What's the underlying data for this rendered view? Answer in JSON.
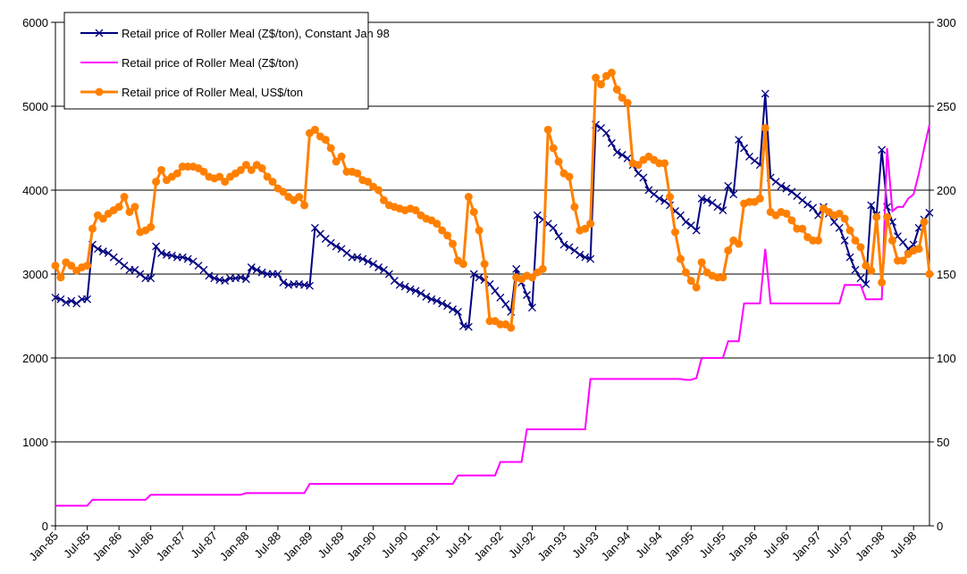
{
  "chart_data": {
    "type": "line",
    "categories": [
      "Jan-85",
      null,
      null,
      null,
      null,
      null,
      "Jul-85",
      null,
      null,
      null,
      null,
      null,
      "Jan-86",
      null,
      null,
      null,
      null,
      null,
      "Jul-86",
      null,
      null,
      null,
      null,
      null,
      "Jan-87",
      null,
      null,
      null,
      null,
      null,
      "Jul-87",
      null,
      null,
      null,
      null,
      null,
      "Jan-88",
      null,
      null,
      null,
      null,
      null,
      "Jul-88",
      null,
      null,
      null,
      null,
      null,
      "Jan-89",
      null,
      null,
      null,
      null,
      null,
      "Jul-89",
      null,
      null,
      null,
      null,
      null,
      "Jan-90",
      null,
      null,
      null,
      null,
      null,
      "Jul-90",
      null,
      null,
      null,
      null,
      null,
      "Jan-91",
      null,
      null,
      null,
      null,
      null,
      "Jul-91",
      null,
      null,
      null,
      null,
      null,
      "Jan-92",
      null,
      null,
      null,
      null,
      null,
      "Jul-92",
      null,
      null,
      null,
      null,
      null,
      "Jan-93",
      null,
      null,
      null,
      null,
      null,
      "Jul-93",
      null,
      null,
      null,
      null,
      null,
      "Jan-94",
      null,
      null,
      null,
      null,
      null,
      "Jul-94",
      null,
      null,
      null,
      null,
      null,
      "Jan-95",
      null,
      null,
      null,
      null,
      null,
      "Jul-95",
      null,
      null,
      null,
      null,
      null,
      "Jan-96",
      null,
      null,
      null,
      null,
      null,
      "Jul-96",
      null,
      null,
      null,
      null,
      null,
      "Jan-97",
      null,
      null,
      null,
      null,
      null,
      "Jul-97",
      null,
      null,
      null,
      null,
      null,
      "Jan-98",
      null,
      null,
      null,
      null,
      null,
      "Jul-98",
      null,
      null,
      null
    ],
    "series": [
      {
        "name": "Retail price of Roller Meal (Z$/ton), Constant Jan 98",
        "color": "#000080",
        "marker": "x",
        "axis": "y",
        "values": [
          2720,
          2700,
          2660,
          2680,
          2650,
          2700,
          2700,
          3350,
          3300,
          3270,
          3250,
          3200,
          3150,
          3100,
          3050,
          3050,
          3000,
          2950,
          2950,
          3330,
          3250,
          3230,
          3220,
          3200,
          3200,
          3180,
          3150,
          3100,
          3050,
          2980,
          2950,
          2930,
          2920,
          2950,
          2950,
          2960,
          2940,
          3080,
          3050,
          3020,
          3000,
          3000,
          3000,
          2900,
          2870,
          2880,
          2880,
          2870,
          2860,
          3550,
          3480,
          3420,
          3370,
          3330,
          3300,
          3250,
          3200,
          3200,
          3180,
          3150,
          3120,
          3080,
          3050,
          3000,
          2920,
          2870,
          2850,
          2820,
          2800,
          2770,
          2730,
          2700,
          2680,
          2650,
          2620,
          2580,
          2550,
          2380,
          2370,
          3000,
          2960,
          2930,
          2880,
          2800,
          2720,
          2640,
          2550,
          3060,
          2900,
          2750,
          2600,
          3700,
          3650,
          3600,
          3550,
          3450,
          3350,
          3320,
          3280,
          3230,
          3200,
          3180,
          4780,
          4740,
          4680,
          4560,
          4450,
          4420,
          4380,
          4300,
          4200,
          4150,
          4000,
          3950,
          3900,
          3870,
          3820,
          3750,
          3700,
          3620,
          3580,
          3520,
          3900,
          3880,
          3850,
          3800,
          3760,
          4050,
          3950,
          4600,
          4500,
          4400,
          4350,
          4300,
          5150,
          4150,
          4100,
          4050,
          4020,
          3980,
          3930,
          3880,
          3830,
          3790,
          3700,
          3800,
          3720,
          3620,
          3550,
          3400,
          3200,
          3050,
          2950,
          2880,
          3820,
          3700,
          4480,
          3800,
          3620,
          3450,
          3380,
          3300,
          3350,
          3550,
          3650,
          3730
        ]
      },
      {
        "name": "Retail price of Roller Meal (Z$/ton)",
        "color": "#ff00ff",
        "marker": "none",
        "axis": "y",
        "values": [
          240,
          240,
          240,
          240,
          240,
          240,
          240,
          310,
          310,
          310,
          310,
          310,
          310,
          310,
          310,
          310,
          310,
          310,
          370,
          370,
          370,
          370,
          370,
          370,
          370,
          370,
          370,
          370,
          370,
          370,
          370,
          370,
          370,
          370,
          370,
          370,
          390,
          390,
          390,
          390,
          390,
          390,
          390,
          390,
          390,
          390,
          390,
          390,
          500,
          500,
          500,
          500,
          500,
          500,
          500,
          500,
          500,
          500,
          500,
          500,
          500,
          500,
          500,
          500,
          500,
          500,
          500,
          500,
          500,
          500,
          500,
          500,
          500,
          500,
          500,
          500,
          600,
          600,
          600,
          600,
          600,
          600,
          600,
          600,
          760,
          760,
          760,
          760,
          760,
          1150,
          1150,
          1150,
          1150,
          1150,
          1150,
          1150,
          1150,
          1150,
          1150,
          1150,
          1150,
          1750,
          1750,
          1750,
          1750,
          1750,
          1750,
          1750,
          1750,
          1750,
          1750,
          1750,
          1750,
          1750,
          1750,
          1750,
          1750,
          1750,
          1750,
          1740,
          1740,
          1760,
          2000,
          2000,
          2000,
          2000,
          2000,
          2200,
          2200,
          2200,
          2650,
          2650,
          2650,
          2650,
          3300,
          2650,
          2650,
          2650,
          2650,
          2650,
          2650,
          2650,
          2650,
          2650,
          2650,
          2650,
          2650,
          2650,
          2650,
          2870,
          2870,
          2870,
          2870,
          2700,
          2700,
          2700,
          2700,
          4500,
          3750,
          3800,
          3800,
          3900,
          3950,
          4200,
          4500,
          4780
        ]
      },
      {
        "name": "Retail price of Roller Meal, US$/ton",
        "color": "#ff8000",
        "marker": "circle",
        "axis": "y2",
        "values": [
          155,
          148,
          157,
          155,
          152,
          154,
          155,
          177,
          185,
          183,
          186,
          188,
          190,
          196,
          187,
          190,
          175,
          176,
          178,
          205,
          212,
          206,
          208,
          210,
          214,
          214,
          214,
          213,
          211,
          208,
          207,
          208,
          205,
          208,
          210,
          212,
          215,
          212,
          215,
          213,
          208,
          205,
          201,
          199,
          196,
          194,
          196,
          191,
          234,
          236,
          232,
          230,
          225,
          217,
          220,
          211,
          211,
          210,
          206,
          205,
          202,
          200,
          194,
          191,
          190,
          189,
          188,
          189,
          188,
          185,
          183,
          182,
          180,
          176,
          173,
          168,
          158,
          156,
          196,
          187,
          176,
          156,
          122,
          122,
          120,
          120,
          118,
          148,
          147,
          149,
          148,
          151,
          153,
          236,
          225,
          217,
          210,
          208,
          190,
          176,
          177,
          180,
          267,
          263,
          268,
          270,
          260,
          255,
          252,
          216,
          215,
          218,
          220,
          218,
          216,
          216,
          196,
          175,
          159,
          151,
          146,
          142,
          157,
          151,
          149,
          148,
          148,
          164,
          170,
          168,
          192,
          193,
          193,
          195,
          237,
          187,
          185,
          187,
          186,
          182,
          177,
          177,
          172,
          170,
          170,
          189,
          187,
          185,
          186,
          183,
          176,
          170,
          166,
          155,
          152,
          184,
          145,
          184,
          170,
          158,
          158,
          162,
          164,
          165,
          181,
          150
        ]
      }
    ],
    "ylim": [
      0,
      6000
    ],
    "yticks": [
      0,
      1000,
      2000,
      3000,
      4000,
      5000,
      6000
    ],
    "y2lim": [
      0,
      300
    ],
    "y2ticks": [
      0,
      50,
      100,
      150,
      200,
      250,
      300
    ],
    "grid": true,
    "legend": "upper left"
  }
}
